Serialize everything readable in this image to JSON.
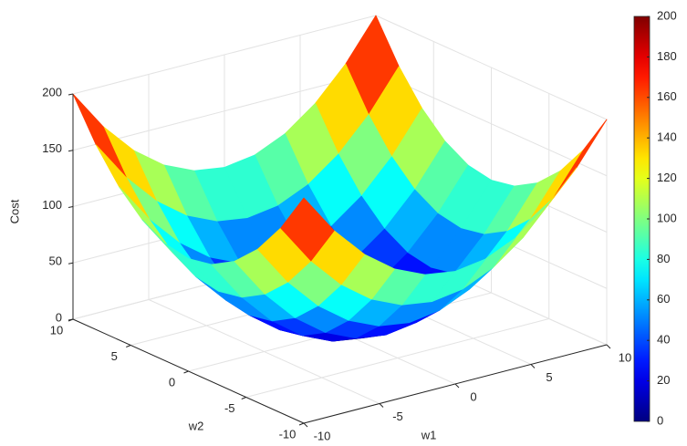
{
  "chart_data": {
    "type": "surface",
    "xlabel": "w1",
    "ylabel": "w2",
    "zlabel": "Cost",
    "x": [
      -10,
      -8,
      -6,
      -4,
      -2,
      0,
      2,
      4,
      6,
      8,
      10
    ],
    "y": [
      -10,
      -8,
      -6,
      -4,
      -2,
      0,
      2,
      4,
      6,
      8,
      10
    ],
    "z": [
      [
        200,
        164,
        136,
        116,
        104,
        100,
        104,
        116,
        136,
        164,
        200
      ],
      [
        164,
        128,
        100,
        80,
        68,
        64,
        68,
        80,
        100,
        128,
        164
      ],
      [
        136,
        100,
        72,
        52,
        40,
        36,
        40,
        52,
        72,
        100,
        136
      ],
      [
        116,
        80,
        52,
        32,
        20,
        16,
        20,
        32,
        52,
        80,
        116
      ],
      [
        104,
        68,
        40,
        20,
        8,
        4,
        8,
        20,
        40,
        68,
        104
      ],
      [
        100,
        64,
        36,
        16,
        4,
        0,
        4,
        16,
        36,
        64,
        100
      ],
      [
        104,
        68,
        40,
        20,
        8,
        4,
        8,
        20,
        40,
        68,
        104
      ],
      [
        116,
        80,
        52,
        32,
        20,
        16,
        20,
        32,
        52,
        80,
        116
      ],
      [
        136,
        100,
        72,
        52,
        40,
        36,
        40,
        52,
        72,
        100,
        136
      ],
      [
        164,
        128,
        100,
        80,
        68,
        64,
        68,
        80,
        100,
        128,
        164
      ],
      [
        200,
        164,
        136,
        116,
        104,
        100,
        104,
        116,
        136,
        164,
        200
      ]
    ],
    "xlim": [
      -10,
      10
    ],
    "xticks": [
      -10,
      -5,
      0,
      5,
      10
    ],
    "ylim": [
      -10,
      10
    ],
    "yticks": [
      -10,
      -5,
      0,
      5,
      10
    ],
    "zlim": [
      0,
      200
    ],
    "zticks": [
      0,
      50,
      100,
      150,
      200
    ],
    "colormap": "jet",
    "clim": [
      0,
      200
    ],
    "cticks": [
      0,
      20,
      40,
      60,
      80,
      100,
      120,
      140,
      160,
      180,
      200
    ],
    "grid": true,
    "colorbar": true
  }
}
